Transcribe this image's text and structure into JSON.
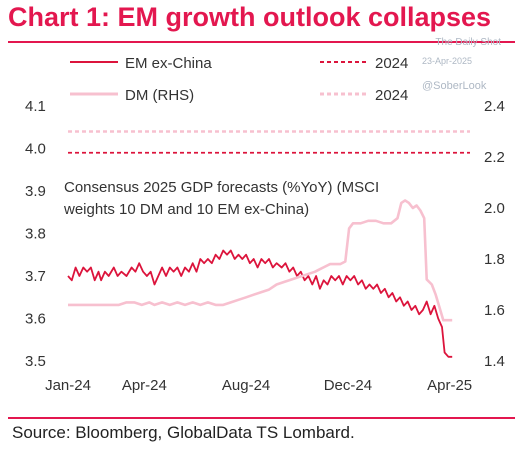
{
  "header": {
    "title": "Chart 1: EM growth outlook collapses",
    "watermark": "The Daily Shot",
    "date": "23-Apr-2025",
    "handle": "@SoberLook"
  },
  "footer": {
    "source": "Source: Bloomberg, GlobalData TS Lombard."
  },
  "colors": {
    "accent": "#e3174f",
    "em_line": "#dc143c",
    "dm_line": "#f7c0cf",
    "ref_em": "#dc143c",
    "ref_dm": "#f7c0cf"
  },
  "chart_data": {
    "type": "line",
    "annotation_lines": [
      "Consensus 2025 GDP forecasts (%YoY) (MSCI",
      "weights 10 DM and 10 EM ex-China)"
    ],
    "legend": [
      {
        "label": "EM ex-China",
        "style": "solid",
        "series": "em"
      },
      {
        "label": "2024",
        "style": "dashed",
        "series": "em_ref"
      },
      {
        "label": "DM (RHS)",
        "style": "solid",
        "series": "dm"
      },
      {
        "label": "2024",
        "style": "dashed",
        "series": "dm_ref"
      }
    ],
    "x_ticks": [
      {
        "label": "Jan-24",
        "t": 0
      },
      {
        "label": "Apr-24",
        "t": 3
      },
      {
        "label": "Aug-24",
        "t": 7
      },
      {
        "label": "Dec-24",
        "t": 11
      },
      {
        "label": "Apr-25",
        "t": 15
      }
    ],
    "xlim": [
      0,
      15.8
    ],
    "y_left": {
      "ticks": [
        "3.5",
        "3.6",
        "3.7",
        "3.8",
        "3.9",
        "4.0",
        "4.1"
      ],
      "lim": [
        3.5,
        4.1
      ]
    },
    "y_right": {
      "ticks": [
        "1.4",
        "1.6",
        "1.8",
        "2.0",
        "2.2",
        "2.4"
      ],
      "lim": [
        1.4,
        2.4
      ]
    },
    "reference": {
      "em_2024": 3.99,
      "dm_2024": 2.3
    },
    "series": [
      {
        "name": "EM ex-China",
        "axis": "left",
        "points": [
          [
            0.0,
            3.7
          ],
          [
            0.15,
            3.69
          ],
          [
            0.3,
            3.72
          ],
          [
            0.45,
            3.7
          ],
          [
            0.6,
            3.72
          ],
          [
            0.75,
            3.71
          ],
          [
            0.9,
            3.72
          ],
          [
            1.05,
            3.69
          ],
          [
            1.2,
            3.71
          ],
          [
            1.3,
            3.69
          ],
          [
            1.45,
            3.71
          ],
          [
            1.6,
            3.7
          ],
          [
            1.8,
            3.72
          ],
          [
            1.95,
            3.7
          ],
          [
            2.1,
            3.71
          ],
          [
            2.3,
            3.7
          ],
          [
            2.5,
            3.72
          ],
          [
            2.65,
            3.71
          ],
          [
            2.8,
            3.73
          ],
          [
            2.95,
            3.71
          ],
          [
            3.1,
            3.7
          ],
          [
            3.25,
            3.71
          ],
          [
            3.4,
            3.68
          ],
          [
            3.55,
            3.7
          ],
          [
            3.7,
            3.72
          ],
          [
            3.85,
            3.7
          ],
          [
            4.0,
            3.72
          ],
          [
            4.15,
            3.71
          ],
          [
            4.3,
            3.72
          ],
          [
            4.45,
            3.7
          ],
          [
            4.6,
            3.72
          ],
          [
            4.75,
            3.71
          ],
          [
            4.9,
            3.73
          ],
          [
            5.05,
            3.71
          ],
          [
            5.2,
            3.74
          ],
          [
            5.35,
            3.73
          ],
          [
            5.5,
            3.74
          ],
          [
            5.65,
            3.73
          ],
          [
            5.8,
            3.75
          ],
          [
            5.95,
            3.74
          ],
          [
            6.1,
            3.76
          ],
          [
            6.25,
            3.75
          ],
          [
            6.4,
            3.76
          ],
          [
            6.55,
            3.74
          ],
          [
            6.7,
            3.75
          ],
          [
            6.85,
            3.74
          ],
          [
            7.0,
            3.75
          ],
          [
            7.15,
            3.73
          ],
          [
            7.3,
            3.74
          ],
          [
            7.45,
            3.72
          ],
          [
            7.6,
            3.74
          ],
          [
            7.75,
            3.73
          ],
          [
            7.9,
            3.74
          ],
          [
            8.05,
            3.72
          ],
          [
            8.2,
            3.73
          ],
          [
            8.4,
            3.72
          ],
          [
            8.55,
            3.73
          ],
          [
            8.7,
            3.71
          ],
          [
            8.85,
            3.72
          ],
          [
            9.0,
            3.7
          ],
          [
            9.15,
            3.71
          ],
          [
            9.3,
            3.69
          ],
          [
            9.45,
            3.7
          ],
          [
            9.6,
            3.68
          ],
          [
            9.75,
            3.7
          ],
          [
            9.9,
            3.67
          ],
          [
            10.05,
            3.69
          ],
          [
            10.2,
            3.68
          ],
          [
            10.35,
            3.7
          ],
          [
            10.5,
            3.69
          ],
          [
            10.65,
            3.7
          ],
          [
            10.8,
            3.68
          ],
          [
            10.95,
            3.7
          ],
          [
            11.1,
            3.69
          ],
          [
            11.25,
            3.7
          ],
          [
            11.4,
            3.68
          ],
          [
            11.55,
            3.69
          ],
          [
            11.7,
            3.67
          ],
          [
            11.85,
            3.68
          ],
          [
            12.0,
            3.67
          ],
          [
            12.15,
            3.68
          ],
          [
            12.3,
            3.66
          ],
          [
            12.45,
            3.67
          ],
          [
            12.6,
            3.65
          ],
          [
            12.75,
            3.66
          ],
          [
            12.9,
            3.64
          ],
          [
            13.05,
            3.65
          ],
          [
            13.2,
            3.63
          ],
          [
            13.35,
            3.64
          ],
          [
            13.5,
            3.62
          ],
          [
            13.65,
            3.63
          ],
          [
            13.8,
            3.61
          ],
          [
            13.95,
            3.62
          ],
          [
            14.1,
            3.64
          ],
          [
            14.25,
            3.61
          ],
          [
            14.4,
            3.63
          ],
          [
            14.55,
            3.6
          ],
          [
            14.7,
            3.58
          ],
          [
            14.8,
            3.52
          ],
          [
            14.95,
            3.51
          ],
          [
            15.1,
            3.51
          ]
        ]
      },
      {
        "name": "DM (RHS)",
        "axis": "right",
        "points": [
          [
            0.0,
            1.62
          ],
          [
            0.5,
            1.62
          ],
          [
            1.0,
            1.62
          ],
          [
            1.5,
            1.62
          ],
          [
            2.0,
            1.62
          ],
          [
            2.3,
            1.63
          ],
          [
            2.6,
            1.63
          ],
          [
            2.9,
            1.62
          ],
          [
            3.2,
            1.63
          ],
          [
            3.4,
            1.62
          ],
          [
            3.7,
            1.63
          ],
          [
            4.0,
            1.62
          ],
          [
            4.3,
            1.63
          ],
          [
            4.6,
            1.62
          ],
          [
            4.9,
            1.63
          ],
          [
            5.2,
            1.62
          ],
          [
            5.5,
            1.63
          ],
          [
            5.8,
            1.62
          ],
          [
            6.1,
            1.62
          ],
          [
            6.4,
            1.63
          ],
          [
            6.7,
            1.64
          ],
          [
            7.0,
            1.65
          ],
          [
            7.3,
            1.66
          ],
          [
            7.6,
            1.67
          ],
          [
            7.9,
            1.68
          ],
          [
            8.2,
            1.7
          ],
          [
            8.5,
            1.71
          ],
          [
            8.8,
            1.72
          ],
          [
            9.1,
            1.73
          ],
          [
            9.4,
            1.74
          ],
          [
            9.7,
            1.75
          ],
          [
            9.9,
            1.76
          ],
          [
            10.1,
            1.77
          ],
          [
            10.3,
            1.78
          ],
          [
            10.5,
            1.78
          ],
          [
            10.7,
            1.78
          ],
          [
            10.9,
            1.79
          ],
          [
            11.05,
            1.92
          ],
          [
            11.2,
            1.94
          ],
          [
            11.5,
            1.94
          ],
          [
            11.8,
            1.95
          ],
          [
            12.1,
            1.95
          ],
          [
            12.4,
            1.94
          ],
          [
            12.7,
            1.94
          ],
          [
            12.95,
            1.96
          ],
          [
            13.1,
            2.02
          ],
          [
            13.25,
            2.03
          ],
          [
            13.4,
            2.02
          ],
          [
            13.55,
            2.0
          ],
          [
            13.7,
            2.01
          ],
          [
            13.85,
            1.99
          ],
          [
            14.0,
            1.96
          ],
          [
            14.1,
            1.72
          ],
          [
            14.3,
            1.7
          ],
          [
            14.45,
            1.66
          ],
          [
            14.6,
            1.61
          ],
          [
            14.75,
            1.56
          ],
          [
            15.1,
            1.56
          ]
        ]
      }
    ]
  }
}
